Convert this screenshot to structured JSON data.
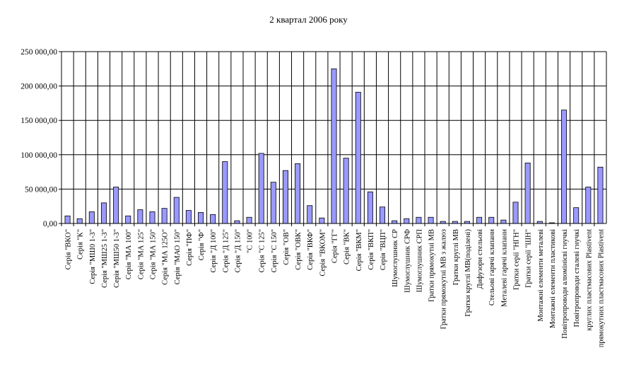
{
  "chart_data": {
    "type": "bar",
    "title": "2 квартал 2006 року",
    "xlabel": "",
    "ylabel": "",
    "ylim": [
      0,
      250000
    ],
    "yticks": [
      0,
      50000,
      100000,
      150000,
      200000,
      250000
    ],
    "ytick_labels": [
      "0,00",
      "50 000,00",
      "100 000,00",
      "150 000,00",
      "200 000,00",
      "250 000,00"
    ],
    "grid": "horizontal and vertical",
    "legend": "none",
    "bar_color": "#9999ff",
    "categories": [
      "Серія \"ВКО\"",
      "Серія \"К\"",
      "Серія \"МШ0 1-3\"",
      "Серія \"МШ25 1-3\"",
      "Серія \"МШ50 1-3\"",
      "Серія \"МА 100\"",
      "Серія \"МА 125\"",
      "Серія \"МА 150\"",
      "Серія \"МА 125О\"",
      "Серія \"МАО 150\"",
      "Серія \"ПФ\"",
      "Серія \"Ф\"",
      "Серія \"Д 100\"",
      "Серія \"Д 125\"",
      "Серія \"Д 150\"",
      "\"С 100\"",
      "Серія \"С 125\"",
      "Серія \"С 150\"",
      "Серія \"ОВ\"",
      "Серія \"ОВК\"",
      "Серія \"ВКФ\"",
      "Серія \"ВКОМ\"",
      "Серія \"ГГ\"",
      "Серія \"ВК\"",
      "Серія \"ВКМ\"",
      "Серія \"ВКП\"",
      "Серія \"ВЦП\"",
      "Шумоглушник СР",
      "Шумоглушник СРФ",
      "Шумоглушник СРП",
      "Гратки прямокутні МВ",
      "Гратки прямокутні МВ з жалюз",
      "Гратки круглі МВ",
      "Гратки круглі МВ(поділені)",
      "Дифузори стельові",
      "Стельові гарячі клапани",
      "Металеві гарячі клапани",
      "Гратки серії \"НГН\"",
      "Гратки серії \"ШН\"",
      "Монтажні елементи металеві",
      "Монтажні елементи пластикові",
      "Повітропроводи алюмінієві гнучкі",
      "Повітропроводи сталеві гнучкі",
      "круглих пластмасових Plastivent",
      "прямокутних пластмасових Plastivent"
    ],
    "values": [
      11000,
      7000,
      17000,
      30000,
      53000,
      11000,
      20000,
      17000,
      22000,
      38000,
      19000,
      16000,
      13000,
      90000,
      4000,
      9000,
      102000,
      60000,
      77000,
      87000,
      26000,
      8000,
      225000,
      95000,
      191000,
      46000,
      24000,
      4000,
      7000,
      9000,
      9000,
      3000,
      3000,
      3000,
      9000,
      9000,
      5000,
      31000,
      88000,
      3000,
      1000,
      165000,
      23000,
      53000,
      82000
    ]
  }
}
